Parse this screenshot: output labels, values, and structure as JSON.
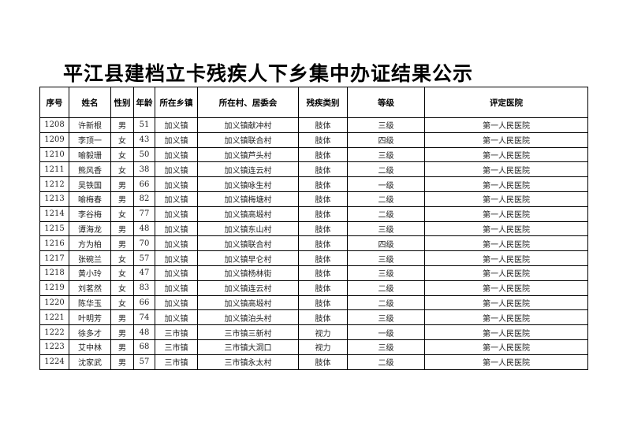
{
  "title": "平江县建档立卡残疾人下乡集中办证结果公示",
  "headers": [
    "序号",
    "姓名",
    "性别",
    "年龄",
    "所在乡镇",
    "所在村、居委会",
    "残疾类别",
    "等级",
    "评定医院"
  ],
  "rows": [
    [
      "1208",
      "许新根",
      "男",
      "51",
      "加义镇",
      "加义镇献冲村",
      "肢体",
      "三级",
      "第一人民医院"
    ],
    [
      "1209",
      "李顶一",
      "女",
      "43",
      "加义镇",
      "加义镇联合村",
      "肢体",
      "四级",
      "第一人民医院"
    ],
    [
      "1210",
      "喻毅珊",
      "女",
      "50",
      "加义镇",
      "加义镇芦头村",
      "肢体",
      "三级",
      "第一人民医院"
    ],
    [
      "1211",
      "熊风香",
      "女",
      "38",
      "加义镇",
      "加义镇连云村",
      "肢体",
      "二级",
      "第一人民医院"
    ],
    [
      "1212",
      "吴铁国",
      "男",
      "66",
      "加义镇",
      "加义镇咏生村",
      "肢体",
      "一级",
      "第一人民医院"
    ],
    [
      "1213",
      "喻梅春",
      "男",
      "82",
      "加义镇",
      "加义镇梅塘村",
      "肢体",
      "二级",
      "第一人民医院"
    ],
    [
      "1214",
      "李谷梅",
      "女",
      "77",
      "加义镇",
      "加义镇高塅村",
      "肢体",
      "二级",
      "第一人民医院"
    ],
    [
      "1215",
      "谭海龙",
      "男",
      "48",
      "加义镇",
      "加义镇东山村",
      "肢体",
      "三级",
      "第一人民医院"
    ],
    [
      "1216",
      "方为柏",
      "男",
      "70",
      "加义镇",
      "加义镇联合村",
      "肢体",
      "四级",
      "第一人民医院"
    ],
    [
      "1217",
      "张碗兰",
      "女",
      "57",
      "加义镇",
      "加义镇早仑村",
      "肢体",
      "三级",
      "第一人民医院"
    ],
    [
      "1218",
      "黄小玲",
      "女",
      "47",
      "加义镇",
      "加义镇杨林街",
      "肢体",
      "三级",
      "第一人民医院"
    ],
    [
      "1219",
      "刘茗然",
      "女",
      "83",
      "加义镇",
      "加义镇连云村",
      "肢体",
      "二级",
      "第一人民医院"
    ],
    [
      "1220",
      "陈华玉",
      "女",
      "66",
      "加义镇",
      "加义镇高塅村",
      "肢体",
      "二级",
      "第一人民医院"
    ],
    [
      "1221",
      "叶明芳",
      "男",
      "74",
      "加义镇",
      "加义镇泊头村",
      "肢体",
      "三级",
      "第一人民医院"
    ],
    [
      "1222",
      "徐多才",
      "男",
      "48",
      "三市镇",
      "三市镇三新村",
      "视力",
      "一级",
      "第一人民医院"
    ],
    [
      "1223",
      "艾中林",
      "男",
      "68",
      "三市镇",
      "三市镇大洞口",
      "视力",
      "三级",
      "第一人民医院"
    ],
    [
      "1224",
      "沈家武",
      "男",
      "57",
      "三市镇",
      "三市镇永太村",
      "肢体",
      "二级",
      "第一人民医院"
    ]
  ]
}
